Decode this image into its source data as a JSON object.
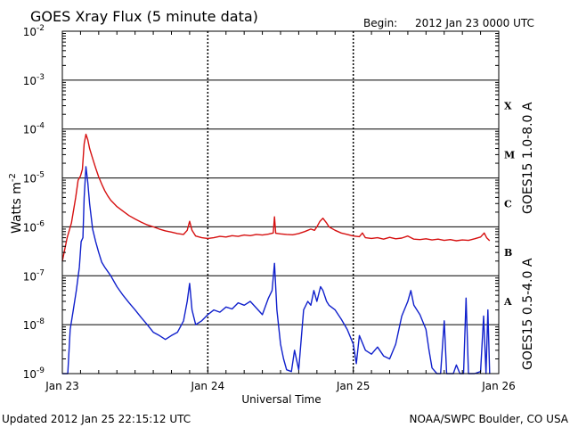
{
  "header": {
    "title": "GOES Xray Flux (5 minute data)",
    "begin_label": "Begin:",
    "begin_value": "2012 Jan 23 0000 UTC"
  },
  "footer": {
    "updated": "Updated 2012 Jan 25 22:15:12 UTC",
    "source": "NOAA/SWPC Boulder, CO USA"
  },
  "colors": {
    "long": "#d61010",
    "short": "#1020cc",
    "axis": "#000000"
  },
  "chart_data": {
    "type": "line",
    "title": "GOES Xray Flux (5 minute data)",
    "xlabel": "Universal Time",
    "ylabel": "Watts m",
    "ylabel_exp": "-2",
    "yscale": "log",
    "xlim": [
      0,
      72
    ],
    "ylim": [
      1e-09,
      0.01
    ],
    "grid": true,
    "x_unit": "hours since 2012 Jan 23 0000 UTC",
    "x_ticks": [
      {
        "x": 0,
        "label": "Jan 23"
      },
      {
        "x": 24,
        "label": "Jan 24"
      },
      {
        "x": 48,
        "label": "Jan 25"
      },
      {
        "x": 72,
        "label": "Jan 26"
      }
    ],
    "y_ticks": [
      {
        "exp": -9,
        "label": "10",
        "sup": "-9"
      },
      {
        "exp": -8,
        "label": "10",
        "sup": "-8"
      },
      {
        "exp": -7,
        "label": "10",
        "sup": "-7"
      },
      {
        "exp": -6,
        "label": "10",
        "sup": "-6"
      },
      {
        "exp": -5,
        "label": "10",
        "sup": "-5"
      },
      {
        "exp": -4,
        "label": "10",
        "sup": "-4"
      },
      {
        "exp": -3,
        "label": "10",
        "sup": "-3"
      },
      {
        "exp": -2,
        "label": "10",
        "sup": "-2"
      }
    ],
    "flare_classes": [
      {
        "label": "A",
        "y": 3e-08
      },
      {
        "label": "B",
        "y": 3e-07
      },
      {
        "label": "C",
        "y": 3e-06
      },
      {
        "label": "M",
        "y": 3e-05
      },
      {
        "label": "X",
        "y": 0.0003
      }
    ],
    "series": [
      {
        "name": "GOES15 1.0-8.0 A",
        "color": "#d61010",
        "points": [
          [
            0,
            2e-07
          ],
          [
            0.8,
            6e-07
          ],
          [
            1.5,
            1.2e-06
          ],
          [
            2.2,
            4e-06
          ],
          [
            2.6,
            9e-06
          ],
          [
            3.0,
            1.1e-05
          ],
          [
            3.3,
            1.5e-05
          ],
          [
            3.6,
            5e-05
          ],
          [
            3.9,
            7.8e-05
          ],
          [
            4.2,
            6e-05
          ],
          [
            4.5,
            4e-05
          ],
          [
            5.0,
            2.5e-05
          ],
          [
            5.5,
            1.6e-05
          ],
          [
            6.0,
            1.05e-05
          ],
          [
            6.5,
            7.5e-06
          ],
          [
            7.0,
            5.5e-06
          ],
          [
            7.5,
            4.3e-06
          ],
          [
            8.0,
            3.5e-06
          ],
          [
            9.0,
            2.6e-06
          ],
          [
            10.0,
            2.1e-06
          ],
          [
            11.0,
            1.7e-06
          ],
          [
            12.0,
            1.45e-06
          ],
          [
            13.0,
            1.25e-06
          ],
          [
            14.0,
            1.1e-06
          ],
          [
            15.0,
            1e-06
          ],
          [
            16.0,
            9e-07
          ],
          [
            17.0,
            8.3e-07
          ],
          [
            18.0,
            7.8e-07
          ],
          [
            19.0,
            7.3e-07
          ],
          [
            20.0,
            7e-07
          ],
          [
            20.6,
            8.5e-07
          ],
          [
            21.0,
            1.3e-06
          ],
          [
            21.4,
            8.5e-07
          ],
          [
            22.0,
            6.5e-07
          ],
          [
            23.0,
            6e-07
          ],
          [
            24.0,
            5.8e-07
          ],
          [
            25.0,
            6e-07
          ],
          [
            26.0,
            6.4e-07
          ],
          [
            27.0,
            6.2e-07
          ],
          [
            28.0,
            6.6e-07
          ],
          [
            29.0,
            6.4e-07
          ],
          [
            30.0,
            6.8e-07
          ],
          [
            31.0,
            6.6e-07
          ],
          [
            32.0,
            7e-07
          ],
          [
            33.0,
            6.8e-07
          ],
          [
            34.0,
            7.1e-07
          ],
          [
            34.8,
            7.5e-07
          ],
          [
            35.0,
            1.6e-06
          ],
          [
            35.2,
            7.4e-07
          ],
          [
            36.0,
            7.2e-07
          ],
          [
            37.0,
            7e-07
          ],
          [
            38.0,
            6.9e-07
          ],
          [
            39.0,
            7.3e-07
          ],
          [
            40.0,
            8e-07
          ],
          [
            41.0,
            9e-07
          ],
          [
            41.6,
            8.5e-07
          ],
          [
            42.0,
            1e-06
          ],
          [
            42.5,
            1.3e-06
          ],
          [
            43.0,
            1.5e-06
          ],
          [
            43.6,
            1.2e-06
          ],
          [
            44.0,
            1e-06
          ],
          [
            45.0,
            8.5e-07
          ],
          [
            46.0,
            7.5e-07
          ],
          [
            47.0,
            7e-07
          ],
          [
            48.0,
            6.5e-07
          ],
          [
            49.0,
            6.3e-07
          ],
          [
            49.5,
            7.5e-07
          ],
          [
            50.0,
            6e-07
          ],
          [
            51.0,
            5.8e-07
          ],
          [
            52.0,
            6e-07
          ],
          [
            53.0,
            5.6e-07
          ],
          [
            54.0,
            6.1e-07
          ],
          [
            55.0,
            5.7e-07
          ],
          [
            56.0,
            5.9e-07
          ],
          [
            57.0,
            6.5e-07
          ],
          [
            58.0,
            5.6e-07
          ],
          [
            59.0,
            5.5e-07
          ],
          [
            60.0,
            5.7e-07
          ],
          [
            61.0,
            5.4e-07
          ],
          [
            62.0,
            5.6e-07
          ],
          [
            63.0,
            5.3e-07
          ],
          [
            64.0,
            5.5e-07
          ],
          [
            65.0,
            5.2e-07
          ],
          [
            66.0,
            5.4e-07
          ],
          [
            67.0,
            5.3e-07
          ],
          [
            68.0,
            5.7e-07
          ],
          [
            69.0,
            6.2e-07
          ],
          [
            69.6,
            7.5e-07
          ],
          [
            70.0,
            6e-07
          ],
          [
            70.5,
            5.2e-07
          ]
        ]
      },
      {
        "name": "GOES15 0.5-4.0 A",
        "color": "#1020cc",
        "points": [
          [
            0,
            1e-09
          ],
          [
            0.9,
            1e-09
          ],
          [
            1.3,
            8e-09
          ],
          [
            1.8,
            2e-08
          ],
          [
            2.3,
            5e-08
          ],
          [
            2.8,
            1.5e-07
          ],
          [
            3.1,
            5e-07
          ],
          [
            3.4,
            6e-07
          ],
          [
            3.6,
            4e-06
          ],
          [
            3.9,
            1.7e-05
          ],
          [
            4.2,
            8e-06
          ],
          [
            4.5,
            3e-06
          ],
          [
            5.0,
            9e-07
          ],
          [
            5.5,
            5e-07
          ],
          [
            6.0,
            3e-07
          ],
          [
            6.5,
            1.9e-07
          ],
          [
            7.0,
            1.5e-07
          ],
          [
            8.0,
            1e-07
          ],
          [
            9.0,
            6e-08
          ],
          [
            10.0,
            4e-08
          ],
          [
            11.0,
            2.8e-08
          ],
          [
            12.0,
            2e-08
          ],
          [
            13.0,
            1.4e-08
          ],
          [
            14.0,
            1e-08
          ],
          [
            15.0,
            7e-09
          ],
          [
            16.0,
            6e-09
          ],
          [
            17.0,
            5e-09
          ],
          [
            18.0,
            6e-09
          ],
          [
            19.0,
            7e-09
          ],
          [
            20.0,
            1.2e-08
          ],
          [
            20.6,
            3e-08
          ],
          [
            21.0,
            7e-08
          ],
          [
            21.4,
            2e-08
          ],
          [
            22.0,
            1e-08
          ],
          [
            23.0,
            1.2e-08
          ],
          [
            24.0,
            1.6e-08
          ],
          [
            25.0,
            2e-08
          ],
          [
            26.0,
            1.8e-08
          ],
          [
            27.0,
            2.3e-08
          ],
          [
            28.0,
            2.1e-08
          ],
          [
            29.0,
            2.8e-08
          ],
          [
            30.0,
            2.5e-08
          ],
          [
            31.0,
            3e-08
          ],
          [
            32.0,
            2.2e-08
          ],
          [
            33.0,
            1.6e-08
          ],
          [
            34.0,
            3.5e-08
          ],
          [
            34.6,
            5e-08
          ],
          [
            35.0,
            1.8e-07
          ],
          [
            35.4,
            2e-08
          ],
          [
            36.0,
            4e-09
          ],
          [
            36.5,
            2e-09
          ],
          [
            37.0,
            1.2e-09
          ],
          [
            37.8,
            1.1e-09
          ],
          [
            38.3,
            3e-09
          ],
          [
            39.0,
            1.2e-09
          ],
          [
            39.8,
            2e-08
          ],
          [
            40.5,
            3e-08
          ],
          [
            41.0,
            2.5e-08
          ],
          [
            41.5,
            5e-08
          ],
          [
            42.0,
            3e-08
          ],
          [
            42.6,
            6e-08
          ],
          [
            43.0,
            5e-08
          ],
          [
            43.6,
            3e-08
          ],
          [
            44.0,
            2.5e-08
          ],
          [
            45.0,
            2e-08
          ],
          [
            46.0,
            1.3e-08
          ],
          [
            47.0,
            8e-09
          ],
          [
            48.0,
            4e-09
          ],
          [
            48.5,
            1.6e-09
          ],
          [
            49.0,
            6e-09
          ],
          [
            50.0,
            3e-09
          ],
          [
            51.0,
            2.5e-09
          ],
          [
            52.0,
            3.5e-09
          ],
          [
            53.0,
            2.3e-09
          ],
          [
            54.0,
            2e-09
          ],
          [
            55.0,
            4e-09
          ],
          [
            56.0,
            1.5e-08
          ],
          [
            57.0,
            3e-08
          ],
          [
            57.5,
            5e-08
          ],
          [
            58.0,
            2.5e-08
          ],
          [
            59.0,
            1.6e-08
          ],
          [
            60.0,
            8e-09
          ],
          [
            60.5,
            3e-09
          ],
          [
            61.0,
            1.3e-09
          ],
          [
            61.8,
            1e-09
          ],
          [
            62.4,
            1e-09
          ],
          [
            63.0,
            1.2e-08
          ],
          [
            63.4,
            1e-09
          ],
          [
            64.5,
            1e-09
          ],
          [
            65.0,
            1.5e-09
          ],
          [
            65.6,
            1e-09
          ],
          [
            66.2,
            1e-09
          ],
          [
            66.6,
            3.5e-08
          ],
          [
            67.0,
            1e-09
          ],
          [
            68.0,
            1e-09
          ],
          [
            69.0,
            1.1e-09
          ],
          [
            69.5,
            1.5e-08
          ],
          [
            69.9,
            1e-09
          ],
          [
            70.2,
            2e-08
          ],
          [
            70.5,
            1e-09
          ]
        ]
      }
    ]
  }
}
